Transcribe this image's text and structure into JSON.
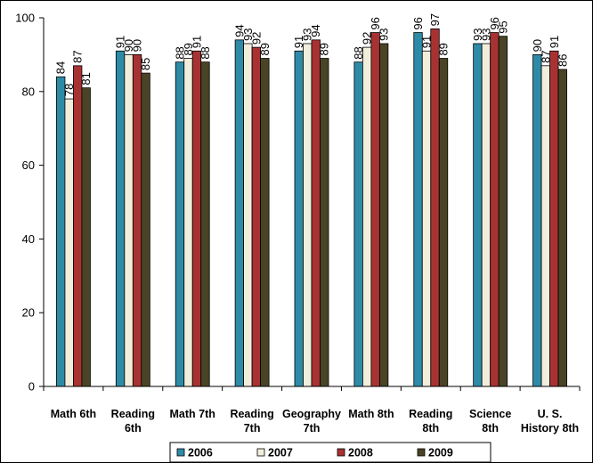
{
  "chart_data": {
    "type": "bar",
    "title": "",
    "xlabel": "",
    "ylabel": "",
    "ylim": [
      0,
      100
    ],
    "yticks": [
      "0",
      "20",
      "40",
      "60",
      "80",
      "100"
    ],
    "grid": false,
    "legend_position": "bottom",
    "categories": [
      [
        "Math 6th"
      ],
      [
        "Reading",
        "6th"
      ],
      [
        "Math 7th"
      ],
      [
        "Reading",
        "7th"
      ],
      [
        "Geography",
        "7th"
      ],
      [
        "Math 8th"
      ],
      [
        "Reading",
        "8th"
      ],
      [
        "Science",
        "8th"
      ],
      [
        "U. S.",
        "History 8th"
      ]
    ],
    "series": [
      {
        "name": "2006",
        "color": "#2e8ba8",
        "values": [
          84,
          91,
          88,
          94,
          91,
          88,
          96,
          93,
          90
        ]
      },
      {
        "name": "2007",
        "color": "#f2eedc",
        "values": [
          78,
          90,
          89,
          93,
          93,
          92,
          91,
          93,
          87
        ]
      },
      {
        "name": "2008",
        "color": "#a83232",
        "values": [
          87,
          90,
          91,
          92,
          94,
          96,
          97,
          96,
          91
        ]
      },
      {
        "name": "2009",
        "color": "#4a4426",
        "values": [
          81,
          85,
          88,
          89,
          89,
          93,
          89,
          95,
          86
        ]
      }
    ]
  }
}
